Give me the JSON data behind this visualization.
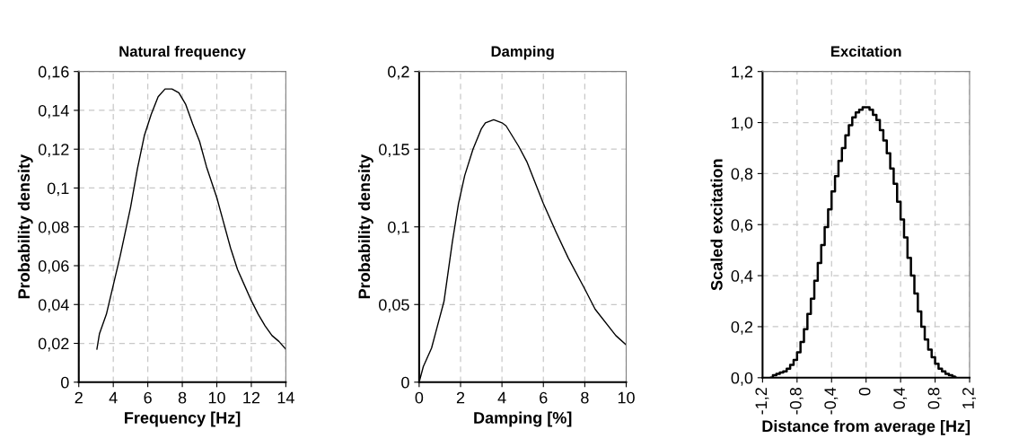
{
  "chart_data": [
    {
      "type": "line",
      "title": "Natural frequency",
      "xlabel": "Frequency [Hz]",
      "ylabel": "Probability density",
      "grid": true,
      "line_style": "solid",
      "xlim": [
        2,
        14
      ],
      "xticks": [
        2,
        4,
        6,
        8,
        10,
        12,
        14
      ],
      "ylim": [
        0,
        0.16
      ],
      "yticks": [
        0,
        {
          "value": 0.02,
          "label": "0,02"
        },
        {
          "value": 0.04,
          "label": "0,04"
        },
        {
          "value": 0.06,
          "label": "0,06"
        },
        {
          "value": 0.08,
          "label": "0,08"
        },
        {
          "value": 0.1,
          "label": "0,1"
        },
        {
          "value": 0.12,
          "label": "0,12"
        },
        {
          "value": 0.14,
          "label": "0,14"
        },
        {
          "value": 0.16,
          "label": "0,16"
        }
      ],
      "series": [
        {
          "color": "#000000",
          "x": [
            3.05,
            3.2,
            3.6,
            4,
            4.4,
            5,
            5.4,
            5.8,
            6.2,
            6.6,
            7,
            7.4,
            7.8,
            8.2,
            8.6,
            9,
            9.4,
            10,
            10.4,
            10.8,
            11.2,
            11.6,
            12,
            12.4,
            12.8,
            13.2,
            13.6,
            14
          ],
          "values": [
            0.017,
            0.025,
            0.035,
            0.05,
            0.065,
            0.09,
            0.11,
            0.127,
            0.138,
            0.147,
            0.151,
            0.151,
            0.149,
            0.143,
            0.133,
            0.124,
            0.111,
            0.095,
            0.082,
            0.069,
            0.058,
            0.05,
            0.042,
            0.035,
            0.029,
            0.024,
            0.021,
            0.017
          ]
        }
      ]
    },
    {
      "type": "line",
      "title": "Damping",
      "xlabel": "Damping [%]",
      "ylabel": "Probability density",
      "grid": true,
      "line_style": "solid",
      "xlim": [
        0,
        10
      ],
      "xticks": [
        0,
        2,
        4,
        6,
        8,
        10
      ],
      "ylim": [
        0,
        0.2
      ],
      "yticks": [
        0,
        {
          "value": 0.05,
          "label": "0,05"
        },
        {
          "value": 0.1,
          "label": "0,1"
        },
        {
          "value": 0.15,
          "label": "0,15"
        },
        {
          "value": 0.2,
          "label": "0,2"
        }
      ],
      "series": [
        {
          "color": "#000000",
          "x": [
            0,
            0.2,
            0.6,
            0.8,
            1.2,
            1.6,
            1.9,
            2.2,
            2.6,
            3,
            3.2,
            3.6,
            4,
            4.2,
            4.8,
            5.2,
            6,
            6.6,
            7.2,
            8,
            8.5,
            9.5,
            10
          ],
          "values": [
            0,
            0.01,
            0.022,
            0.032,
            0.052,
            0.09,
            0.115,
            0.133,
            0.15,
            0.163,
            0.167,
            0.169,
            0.167,
            0.165,
            0.152,
            0.142,
            0.115,
            0.097,
            0.08,
            0.06,
            0.047,
            0.03,
            0.024
          ]
        }
      ]
    },
    {
      "type": "step",
      "title": "Excitation",
      "xlabel": "Distance from average [Hz]",
      "ylabel": "Scaled excitation",
      "grid": true,
      "line_style": "solid",
      "xlim": [
        -1.2,
        1.2
      ],
      "xticks": [
        {
          "value": -1.2,
          "label": "-1,2"
        },
        {
          "value": -0.8,
          "label": "-0,8"
        },
        {
          "value": -0.4,
          "label": "-0,4"
        },
        0,
        {
          "value": 0.4,
          "label": "0,4"
        },
        {
          "value": 0.8,
          "label": "0,8"
        },
        {
          "value": 1.2,
          "label": "1,2"
        }
      ],
      "ylim": [
        0,
        1.2
      ],
      "yticks": [
        {
          "value": 0,
          "label": "0,0"
        },
        {
          "value": 0.2,
          "label": "0,2"
        },
        {
          "value": 0.4,
          "label": "0,4"
        },
        {
          "value": 0.6,
          "label": "0,6"
        },
        {
          "value": 0.8,
          "label": "0,8"
        },
        {
          "value": 1.0,
          "label": "1,0"
        },
        {
          "value": 1.2,
          "label": "1,2"
        }
      ],
      "series": [
        {
          "color": "#000000",
          "x": [
            -1.1,
            -1.06,
            -1.02,
            -0.98,
            -0.94,
            -0.9,
            -0.86,
            -0.82,
            -0.78,
            -0.74,
            -0.7,
            -0.66,
            -0.62,
            -0.58,
            -0.54,
            -0.5,
            -0.46,
            -0.42,
            -0.38,
            -0.34,
            -0.3,
            -0.26,
            -0.22,
            -0.18,
            -0.14,
            -0.1,
            -0.06,
            -0.02,
            0.02,
            0.06,
            0.1,
            0.14,
            0.18,
            0.22,
            0.26,
            0.3,
            0.34,
            0.38,
            0.42,
            0.46,
            0.5,
            0.54,
            0.58,
            0.62,
            0.66,
            0.7,
            0.74,
            0.78,
            0.82,
            0.86,
            0.9,
            0.94,
            0.98,
            1.02,
            1.04
          ],
          "values": [
            0,
            0.01,
            0.015,
            0.02,
            0.025,
            0.035,
            0.05,
            0.07,
            0.1,
            0.14,
            0.19,
            0.25,
            0.31,
            0.38,
            0.45,
            0.52,
            0.59,
            0.66,
            0.73,
            0.79,
            0.85,
            0.9,
            0.95,
            0.99,
            1.02,
            1.04,
            1.05,
            1.06,
            1.06,
            1.05,
            1.03,
            1.01,
            0.97,
            0.93,
            0.88,
            0.82,
            0.76,
            0.69,
            0.62,
            0.55,
            0.47,
            0.4,
            0.33,
            0.26,
            0.2,
            0.15,
            0.11,
            0.08,
            0.055,
            0.035,
            0.025,
            0.015,
            0.01,
            0.005,
            0
          ]
        }
      ]
    }
  ]
}
